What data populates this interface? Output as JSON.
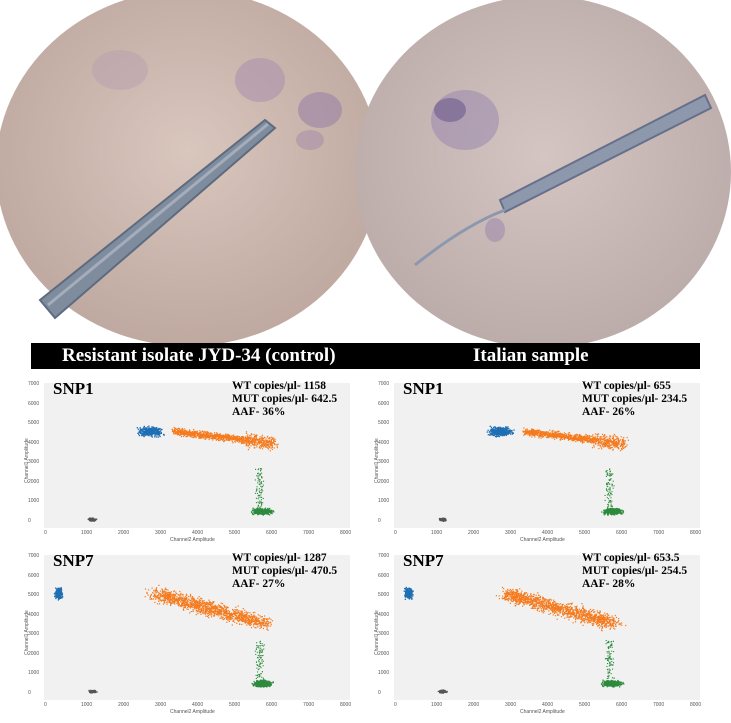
{
  "banner": {
    "left_title": "Resistant isolate JYD-34 (control)",
    "right_title": "Italian sample"
  },
  "axes": {
    "y_label": "Channel1 Amplitude",
    "x_label": "Channel2 Amplitude",
    "y_ticks": [
      "7000",
      "6000",
      "5000",
      "4000",
      "3000",
      "2000",
      "1000",
      "0"
    ],
    "x_ticks": [
      "0",
      "1000",
      "2000",
      "3000",
      "4000",
      "5000",
      "6000",
      "7000",
      "8000"
    ]
  },
  "panels": [
    {
      "id": "p1",
      "snp": "SNP1",
      "wt": "WT copies/µl- 1158",
      "mut": "MUT copies/µl- 642.5",
      "aaf": "AAF- 36%"
    },
    {
      "id": "p2",
      "snp": "SNP1",
      "wt": "WT copies/µl- 655",
      "mut": "MUT copies/µl- 234.5",
      "aaf": "AAF- 26%"
    },
    {
      "id": "p3",
      "snp": "SNP7",
      "wt": "WT copies/µl- 1287",
      "mut": "MUT copies/µl- 470.5",
      "aaf": "AAF- 27%"
    },
    {
      "id": "p4",
      "snp": "SNP7",
      "wt": "WT copies/µl- 653.5",
      "mut": "MUT copies/µl- 254.5",
      "aaf": "AAF- 28%"
    }
  ],
  "colors": {
    "wt_cluster": "#1f6fb4",
    "mut_cluster": "#f57a1d",
    "neg_cluster": "#2e8b3e",
    "empty_cluster": "#555555"
  }
}
